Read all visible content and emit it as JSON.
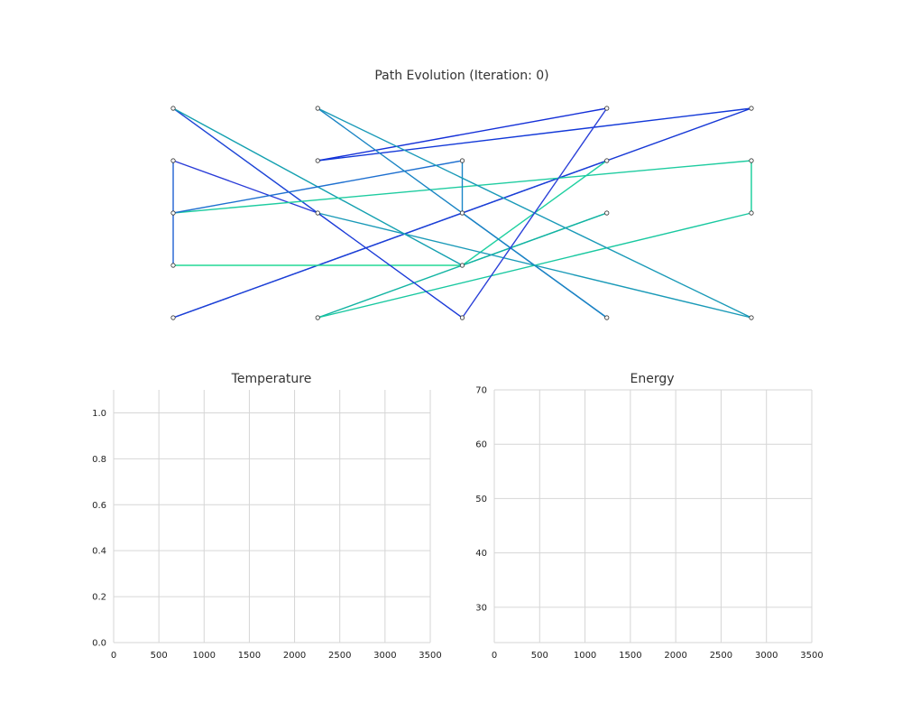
{
  "chart_data": [
    {
      "type": "line",
      "title": "Path Evolution (Iteration: 0)",
      "grid": false,
      "axes_visible": false,
      "x_grid": [
        0,
        1,
        2,
        3,
        4
      ],
      "y_grid": [
        0,
        1,
        2,
        3,
        4
      ],
      "path": [
        [
          3,
          4
        ],
        [
          1,
          3
        ],
        [
          4,
          4
        ],
        [
          0,
          0
        ],
        [
          3,
          3
        ],
        [
          2,
          1
        ],
        [
          0,
          1
        ],
        [
          0,
          3
        ],
        [
          1,
          2
        ],
        [
          0,
          4
        ],
        [
          2,
          1
        ],
        [
          3,
          2
        ],
        [
          1,
          0
        ],
        [
          4,
          2
        ],
        [
          4,
          3
        ],
        [
          0,
          2
        ],
        [
          2,
          3
        ],
        [
          2,
          2
        ],
        [
          3,
          0
        ],
        [
          1,
          4
        ],
        [
          4,
          0
        ],
        [
          1,
          2
        ],
        [
          2,
          0
        ],
        [
          3,
          4
        ]
      ],
      "edge_colors": [
        "#1430d8",
        "#1238d8",
        "#1638d6",
        "#1c40d6",
        "#1fd0a0",
        "#22d896",
        "#1f60d2",
        "#2a3cd8",
        "#1c44d6",
        "#14a0b0",
        "#18b0a8",
        "#12b4a2",
        "#18c8a0",
        "#12cc98",
        "#1ecca0",
        "#1e70d0",
        "#1a86c8",
        "#1a6cc8",
        "#1a84c4",
        "#1a9ab8",
        "#1a9ab8",
        "#1a3ad8",
        "#2a40d8"
      ]
    },
    {
      "type": "line",
      "title": "Temperature",
      "series": [],
      "xlim": [
        0,
        3500
      ],
      "ylim": [
        0,
        1.1
      ],
      "xticks": [
        0,
        500,
        1000,
        1500,
        2000,
        2500,
        3000,
        3500
      ],
      "yticks": [
        0.0,
        0.2,
        0.4,
        0.6,
        0.8,
        1.0
      ],
      "xtick_labels": [
        "0",
        "500",
        "1000",
        "1500",
        "2000",
        "2500",
        "3000",
        "3500"
      ],
      "ytick_labels": [
        "0.0",
        "0.2",
        "0.4",
        "0.6",
        "0.8",
        "1.0"
      ],
      "grid": true
    },
    {
      "type": "line",
      "title": "Energy",
      "series": [],
      "xlim": [
        0,
        3500
      ],
      "ylim": [
        23.5,
        70
      ],
      "xticks": [
        0,
        500,
        1000,
        1500,
        2000,
        2500,
        3000,
        3500
      ],
      "yticks": [
        30,
        40,
        50,
        60,
        70
      ],
      "xtick_labels": [
        "0",
        "500",
        "1000",
        "1500",
        "2000",
        "2500",
        "3000",
        "3500"
      ],
      "ytick_labels": [
        "30",
        "40",
        "50",
        "60",
        "70"
      ],
      "grid": true
    }
  ]
}
